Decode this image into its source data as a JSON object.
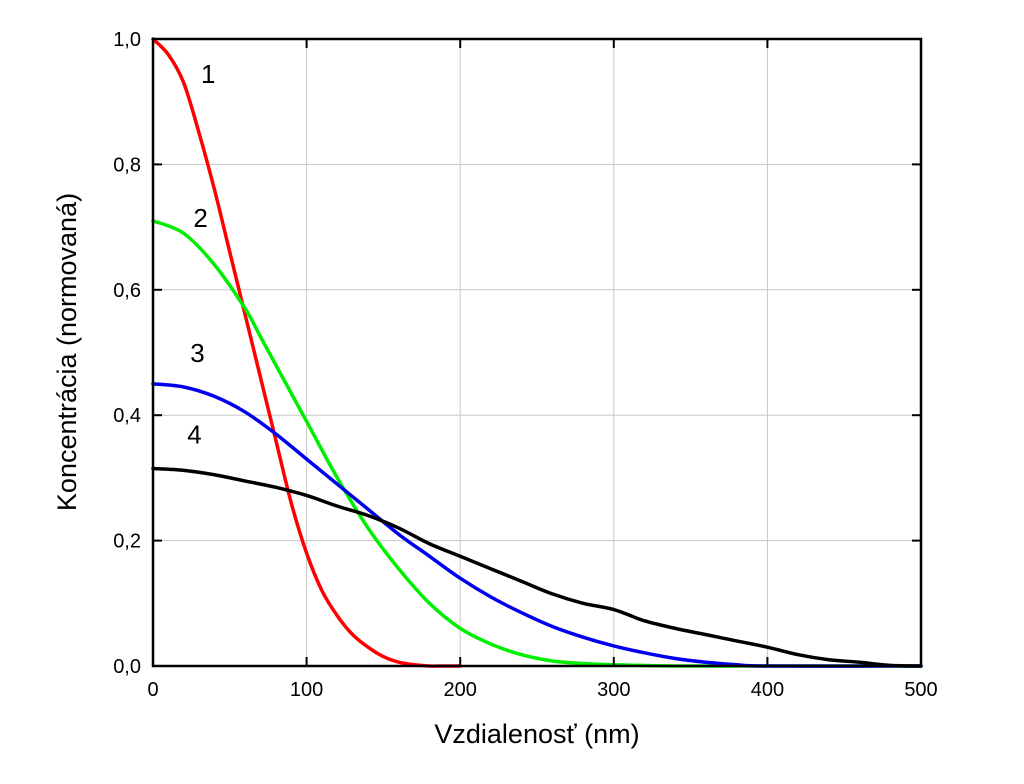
{
  "chart_data": {
    "type": "line",
    "title": "",
    "xlabel": "Vzdialenosť (nm)",
    "ylabel": "Koncentrácia (normovaná)",
    "xlim": [
      0,
      500
    ],
    "ylim": [
      0,
      1.0
    ],
    "xticks": [
      0,
      100,
      200,
      300,
      400,
      500
    ],
    "xtick_labels": [
      "0",
      "100",
      "200",
      "300",
      "400",
      "500"
    ],
    "yticks": [
      0.0,
      0.2,
      0.4,
      0.6,
      0.8,
      1.0
    ],
    "ytick_labels": [
      "0,0",
      "0,2",
      "0,4",
      "0,6",
      "0,8",
      "1,0"
    ],
    "grid": true,
    "legend": "none",
    "series": [
      {
        "label": "1",
        "color": "#ff0000",
        "label_at": [
          36,
          0.93
        ],
        "x": [
          0,
          10,
          20,
          30,
          40,
          50,
          60,
          70,
          80,
          90,
          100,
          110,
          120,
          130,
          140,
          150,
          160,
          170,
          180,
          190,
          200
        ],
        "y": [
          1.0,
          0.975,
          0.93,
          0.85,
          0.76,
          0.66,
          0.56,
          0.46,
          0.36,
          0.26,
          0.18,
          0.12,
          0.08,
          0.05,
          0.03,
          0.015,
          0.006,
          0.002,
          0.0,
          0.0,
          0.0
        ]
      },
      {
        "label": "2",
        "color": "#00ee00",
        "label_at": [
          31,
          0.7
        ],
        "x": [
          0,
          20,
          40,
          60,
          70,
          80,
          100,
          120,
          140,
          160,
          180,
          200,
          220,
          240,
          260,
          280,
          300,
          340,
          400,
          500
        ],
        "y": [
          0.71,
          0.69,
          0.64,
          0.57,
          0.525,
          0.48,
          0.39,
          0.3,
          0.22,
          0.155,
          0.1,
          0.06,
          0.035,
          0.018,
          0.008,
          0.004,
          0.002,
          0.0,
          0.0,
          0.0
        ]
      },
      {
        "label": "3",
        "color": "#0000ee",
        "label_at": [
          29,
          0.485
        ],
        "x": [
          0,
          20,
          40,
          60,
          80,
          100,
          120,
          140,
          160,
          180,
          200,
          220,
          240,
          260,
          280,
          300,
          320,
          340,
          360,
          380,
          400,
          500
        ],
        "y": [
          0.45,
          0.445,
          0.43,
          0.405,
          0.37,
          0.33,
          0.29,
          0.25,
          0.21,
          0.175,
          0.14,
          0.11,
          0.085,
          0.063,
          0.046,
          0.032,
          0.021,
          0.012,
          0.006,
          0.002,
          0.0,
          0.0
        ]
      },
      {
        "label": "4",
        "color": "#000000",
        "label_at": [
          27,
          0.355
        ],
        "x": [
          0,
          20,
          40,
          60,
          80,
          100,
          120,
          140,
          160,
          180,
          200,
          220,
          240,
          260,
          280,
          300,
          320,
          340,
          360,
          380,
          400,
          420,
          440,
          460,
          480,
          500
        ],
        "y": [
          0.315,
          0.312,
          0.305,
          0.295,
          0.285,
          0.272,
          0.255,
          0.24,
          0.22,
          0.195,
          0.175,
          0.155,
          0.135,
          0.115,
          0.1,
          0.09,
          0.072,
          0.06,
          0.05,
          0.04,
          0.03,
          0.018,
          0.01,
          0.006,
          0.001,
          0.0
        ]
      }
    ]
  }
}
